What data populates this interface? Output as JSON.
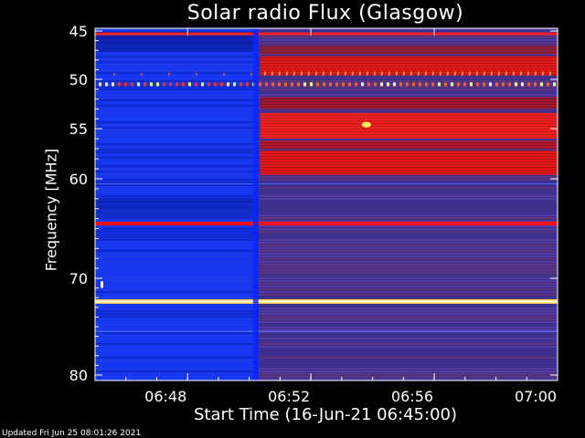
{
  "page": {
    "updated_text": "Updated Fri Jun 25 08:01:26 2021"
  },
  "chart_data": {
    "type": "heatmap",
    "title": "Solar radio Flux (Glasgow)",
    "xlabel": "Start Time (16-Jun-21 06:45:00)",
    "ylabel": "Frequency [MHz]",
    "x_ticks": [
      "06:48",
      "06:52",
      "06:56",
      "07:00"
    ],
    "x_range_minutes_after_0645": [
      0,
      15
    ],
    "x_tick_minutes_after_0645": [
      3,
      7,
      11,
      15
    ],
    "y_ticks": [
      45,
      50,
      55,
      60,
      70,
      80
    ],
    "y_range_mhz": [
      45,
      80
    ],
    "y_scale": "nonlinear (log-like, compressed at high frequency)",
    "colormap": [
      "#000080",
      "#1030ff",
      "#5a3aa8",
      "#c01010",
      "#ff2020",
      "#ffff80",
      "#ffffff"
    ],
    "segments": [
      {
        "x_start_minutes": 0,
        "x_end_minutes": 5.3,
        "level": "low (blue)"
      },
      {
        "x_start_minutes": 5.3,
        "x_end_minutes": 15,
        "level": "elevated (red/purple)"
      }
    ],
    "bands_mhz": [
      {
        "mhz": 45.3,
        "note": "red line across full time"
      },
      {
        "mhz": 48.7,
        "note": "strong red band after onset"
      },
      {
        "mhz": 50.5,
        "note": "spiky interference line with yellow dots"
      },
      {
        "mhz": 54.5,
        "note": "strong red band after onset"
      },
      {
        "mhz": 58.5,
        "note": "strong red band after onset"
      },
      {
        "mhz": 64.5,
        "note": "red line across full time"
      },
      {
        "mhz": 72.5,
        "note": "bright white/yellow line across full time"
      }
    ]
  }
}
